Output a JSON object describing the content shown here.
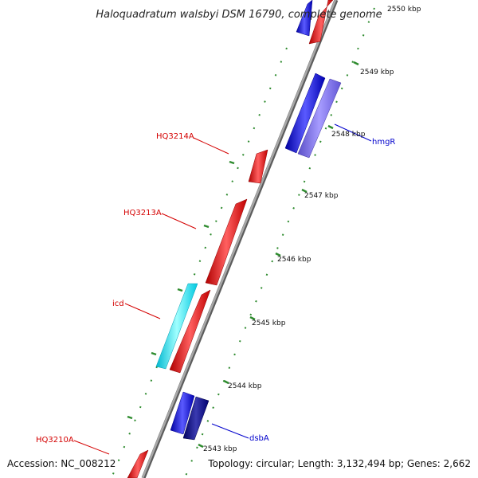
{
  "title": "Haloquadratum walsbyi DSM 16790, complete genome",
  "footer": {
    "accession": "Accession: NC_008212",
    "topology": "Topology: circular; Length: 3,132,494 bp; Genes: 2,662"
  },
  "scale_labels": [
    "2550 kbp",
    "2549 kbp",
    "2548 kbp",
    "2547 kbp",
    "2546 kbp",
    "2545 kbp",
    "2544 kbp",
    "2543 kbp"
  ],
  "genes": {
    "hq3214a": "HQ3214A",
    "hq3213a": "HQ3213A",
    "icd": "icd",
    "hq3210a": "HQ3210A",
    "hmgr": "hmgR",
    "dsba": "dsbA"
  },
  "colors": {
    "forward_strand": "#ff0000",
    "reverse_strand": "#0000ff",
    "icd": "#00e5ff",
    "hmgR": "#7b68ee",
    "dsbA": "#000080",
    "backbone": "#8c8c8c",
    "ticks": "#2e8b2e"
  }
}
